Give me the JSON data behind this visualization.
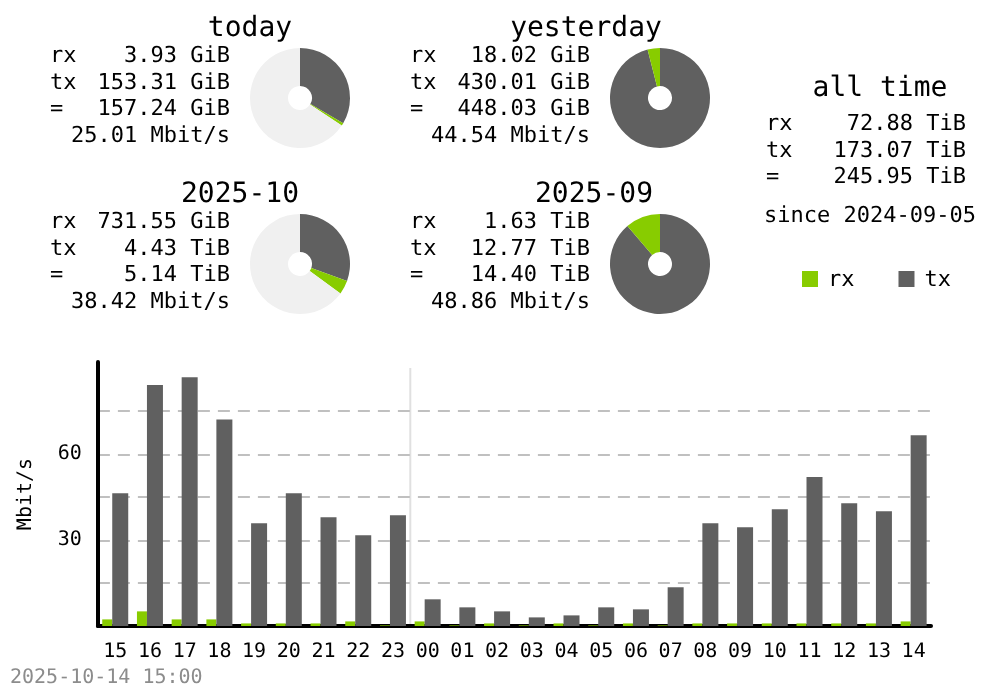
{
  "chart_data": [
    {
      "type": "donut",
      "title": "today",
      "categories": [
        null,
        null,
        null
      ],
      "values": [
        33.4,
        0.9,
        65.7
      ],
      "colors": [
        "#606060",
        "#88cc00",
        "#f0f0f0"
      ],
      "annotations": [
        "rx 3.93 GiB",
        "tx 153.31 GiB",
        "= 157.24 GiB",
        "25.01 Mbit/s"
      ]
    },
    {
      "type": "donut",
      "title": "yesterday",
      "categories": [
        null,
        null
      ],
      "values": [
        96,
        4
      ],
      "colors": [
        "#606060",
        "#88cc00"
      ],
      "annotations": [
        "rx 18.02 GiB",
        "tx 430.01 GiB",
        "= 448.03 GiB",
        "44.54 Mbit/s"
      ]
    },
    {
      "type": "donut",
      "title": "2025-10",
      "categories": [
        null,
        null,
        null
      ],
      "values": [
        30.5,
        4.5,
        65
      ],
      "colors": [
        "#606060",
        "#88cc00",
        "#f0f0f0"
      ],
      "annotations": [
        "rx 731.55 GiB",
        "tx 4.43 TiB",
        "= 5.14 TiB",
        "38.42 Mbit/s"
      ]
    },
    {
      "type": "donut",
      "title": "2025-09",
      "categories": [
        null,
        null
      ],
      "values": [
        88.7,
        11.3
      ],
      "colors": [
        "#606060",
        "#88cc00"
      ],
      "annotations": [
        "rx 1.63 TiB",
        "tx 12.77 TiB",
        "= 14.40 TiB",
        "48.86 Mbit/s"
      ]
    },
    {
      "type": "other",
      "title": "all time",
      "annotations": [
        "rx 72.88 TiB",
        "tx 173.07 TiB",
        "= 245.95 TiB",
        "since 2024-09-05"
      ]
    },
    {
      "type": "bar",
      "ylabel": "Mbit/s",
      "categories": [
        "15",
        "16",
        "17",
        "18",
        "19",
        "20",
        "21",
        "22",
        "23",
        "00",
        "01",
        "02",
        "03",
        "04",
        "05",
        "06",
        "07",
        "08",
        "09",
        "10",
        "11",
        "12",
        "13",
        "14"
      ],
      "series": [
        {
          "name": "rx",
          "color": "#88cc00",
          "values": [
            2.3,
            5.1,
            2.3,
            2.3,
            0.9,
            0.9,
            0.9,
            1.6,
            0.2,
            1.6,
            0.2,
            0.9,
            0.2,
            0.9,
            0.2,
            0.9,
            0.2,
            0.9,
            0.9,
            0.9,
            0.9,
            0.9,
            0.9,
            1.6
          ]
        },
        {
          "name": "tx",
          "color": "#606060",
          "values": [
            46.3,
            84,
            86.7,
            72,
            35.8,
            46.3,
            37.9,
            31.6,
            38.6,
            9.3,
            6.5,
            5.1,
            3,
            3.7,
            6.5,
            5.8,
            13.5,
            35.8,
            34.4,
            40.7,
            51.9,
            42.8,
            40,
            66.5
          ]
        }
      ],
      "ylim": [
        0,
        92
      ],
      "yticks": [
        {
          "value": 15,
          "label": null
        },
        30,
        {
          "value": 45,
          "label": null
        },
        60,
        {
          "value": 75,
          "label": null
        }
      ],
      "grid": "y",
      "legend": "top right",
      "ref_lines": [
        {
          "axis": "x",
          "value": "00",
          "color": "#e0e0e0"
        }
      ],
      "annotations": [
        "2025-10-14 15:00"
      ]
    }
  ]
}
